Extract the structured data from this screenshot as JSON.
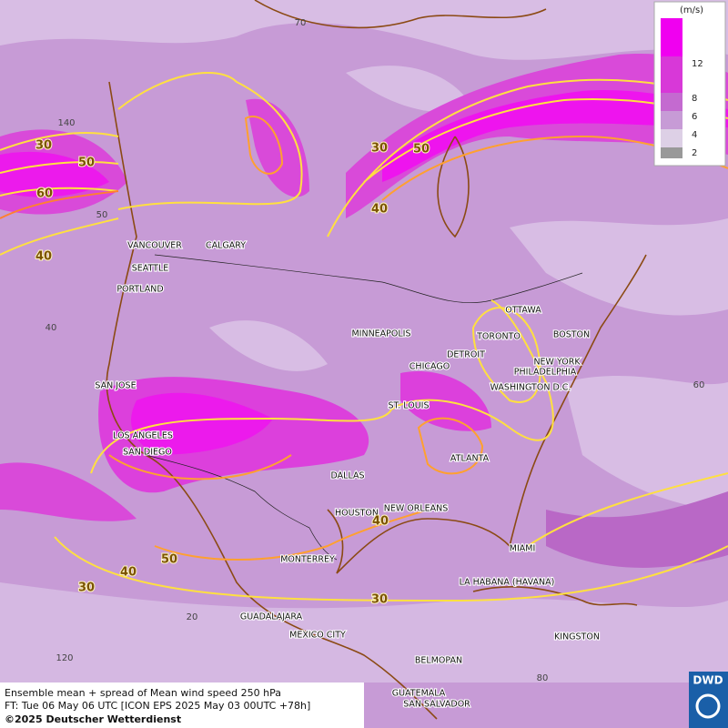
{
  "legend": {
    "unit": "(m/s)",
    "levels": [
      "12",
      "8",
      "6",
      "4",
      "2"
    ]
  },
  "cities": [
    "VANCOUVER",
    "CALGARY",
    "SEATTLE",
    "PORTLAND",
    "MINNEAPOLIS",
    "OTTAWA",
    "TORONTO",
    "BOSTON",
    "DETROIT",
    "NEW YORK",
    "PHILADELPHIA",
    "CHICAGO",
    "WASHINGTON D.C.",
    "SAN JOSE",
    "ST. LOUIS",
    "LOS ANGELES",
    "SAN DIEGO",
    "ATLANTA",
    "DALLAS",
    "HOUSTON",
    "NEW ORLEANS",
    "MIAMI",
    "MONTERREY",
    "LA HABANA (HAVANA)",
    "GUADALAJARA",
    "MEXICO CITY",
    "KINGSTON",
    "BELMOPAN",
    "GUATEMALA",
    "SAN SALVADOR"
  ],
  "contour_labels": [
    "30",
    "50",
    "60",
    "40",
    "30",
    "50",
    "40",
    "40",
    "50",
    "40",
    "30",
    "30"
  ],
  "grid_labels": [
    "70",
    "140",
    "50",
    "40",
    "60",
    "20",
    "120",
    "80"
  ],
  "footer": {
    "line1": "Ensemble mean + spread of Mean wind speed 250 hPa",
    "line2": "FT: Tue 06 May 06 UTC [ICON EPS 2025 May 03 00UTC +78h]",
    "line3": "©2025 Deutscher Wetterdienst"
  },
  "logo": "DWD"
}
